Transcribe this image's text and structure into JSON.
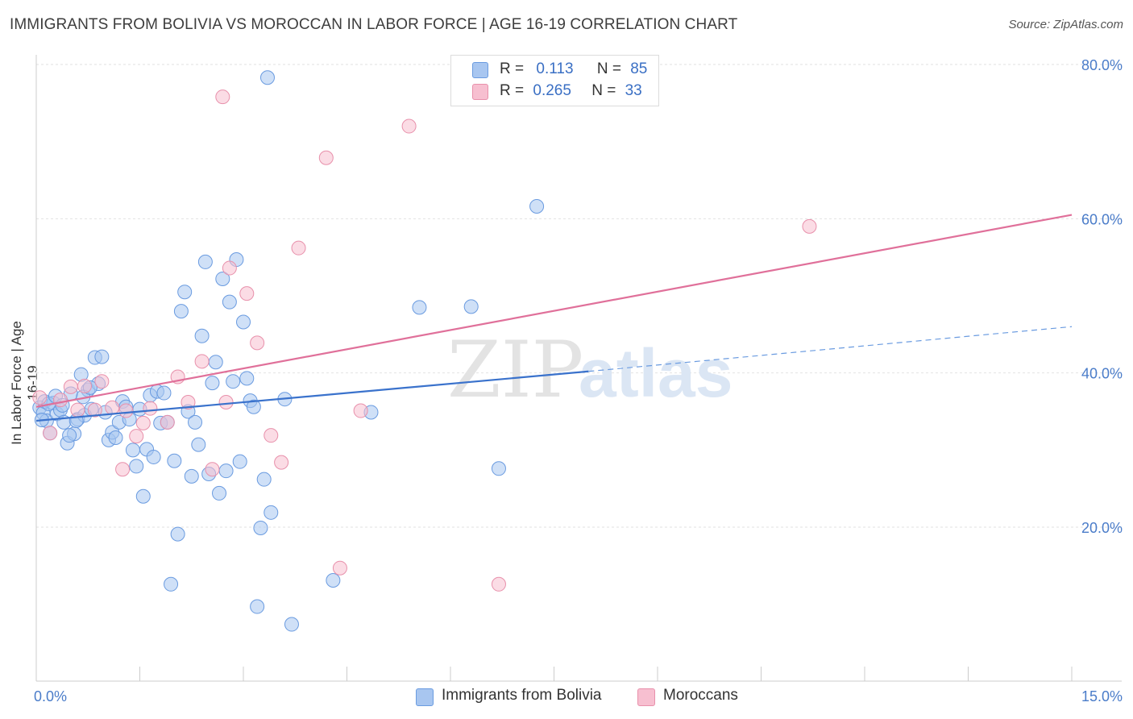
{
  "title": "IMMIGRANTS FROM BOLIVIA VS MOROCCAN IN LABOR FORCE | AGE 16-19 CORRELATION CHART",
  "source": "Source: ZipAtlas.com",
  "watermark": {
    "zip": "ZIP",
    "atlas": "atlas"
  },
  "legend": {
    "r_label": "R =",
    "n_label": "N =",
    "rows": [
      {
        "r": "0.113",
        "n": "85",
        "color": "#a8c6f0",
        "border": "#6a9be0"
      },
      {
        "r": "0.265",
        "n": "33",
        "color": "#f7bfd0",
        "border": "#e890ab"
      }
    ]
  },
  "chart_data": {
    "type": "scatter",
    "title": "IMMIGRANTS FROM BOLIVIA VS MOROCCAN IN LABOR FORCE | AGE 16-19 CORRELATION CHART",
    "xlabel": "",
    "ylabel": "In Labor Force | Age 16-19",
    "xlim": [
      0,
      15
    ],
    "ylim": [
      0,
      82
    ],
    "x_tick_labels": [
      "0.0%",
      "15.0%"
    ],
    "y_ticks": [
      20,
      40,
      60,
      80
    ],
    "y_tick_labels": [
      "20.0%",
      "40.0%",
      "60.0%",
      "80.0%"
    ],
    "grid": true,
    "legend_position": "bottom",
    "series": [
      {
        "name": "Immigrants from Bolivia",
        "color": "#6a9be0",
        "fill": "#a8c6f0",
        "trend": {
          "x": [
            0,
            8
          ],
          "y": [
            33.8,
            40.2
          ],
          "dashed_to": [
            15,
            46
          ]
        },
        "points": [
          [
            0.05,
            35.5
          ],
          [
            0.1,
            34.8
          ],
          [
            0.12,
            36.3
          ],
          [
            0.15,
            33.8
          ],
          [
            0.2,
            32.2
          ],
          [
            0.25,
            36.1
          ],
          [
            0.3,
            34.7
          ],
          [
            0.35,
            35.2
          ],
          [
            0.4,
            33.6
          ],
          [
            0.45,
            30.9
          ],
          [
            0.5,
            37.3
          ],
          [
            0.55,
            32.1
          ],
          [
            0.6,
            34.0
          ],
          [
            0.65,
            39.8
          ],
          [
            0.7,
            34.5
          ],
          [
            0.75,
            37.8
          ],
          [
            0.8,
            35.3
          ],
          [
            0.85,
            42.0
          ],
          [
            0.9,
            38.6
          ],
          [
            0.95,
            42.1
          ],
          [
            1.0,
            34.9
          ],
          [
            1.05,
            31.3
          ],
          [
            1.1,
            32.3
          ],
          [
            1.15,
            31.6
          ],
          [
            1.2,
            33.6
          ],
          [
            1.25,
            36.3
          ],
          [
            1.3,
            35.6
          ],
          [
            1.35,
            34.0
          ],
          [
            1.4,
            30.0
          ],
          [
            1.45,
            27.9
          ],
          [
            1.5,
            35.3
          ],
          [
            1.55,
            24.0
          ],
          [
            1.6,
            30.1
          ],
          [
            1.65,
            37.1
          ],
          [
            1.7,
            29.1
          ],
          [
            1.75,
            37.6
          ],
          [
            1.8,
            33.5
          ],
          [
            1.85,
            37.4
          ],
          [
            1.9,
            33.6
          ],
          [
            1.95,
            12.6
          ],
          [
            2.0,
            28.6
          ],
          [
            2.05,
            19.1
          ],
          [
            2.1,
            48.0
          ],
          [
            2.15,
            50.5
          ],
          [
            2.2,
            35.0
          ],
          [
            2.25,
            26.6
          ],
          [
            2.3,
            33.6
          ],
          [
            2.35,
            30.7
          ],
          [
            2.4,
            44.8
          ],
          [
            2.45,
            54.4
          ],
          [
            2.5,
            26.9
          ],
          [
            2.55,
            38.7
          ],
          [
            2.6,
            41.4
          ],
          [
            2.65,
            24.4
          ],
          [
            2.7,
            52.2
          ],
          [
            2.75,
            27.3
          ],
          [
            2.8,
            49.2
          ],
          [
            2.85,
            38.9
          ],
          [
            2.9,
            54.7
          ],
          [
            2.95,
            28.5
          ],
          [
            3.0,
            46.6
          ],
          [
            3.05,
            39.3
          ],
          [
            3.1,
            36.4
          ],
          [
            3.15,
            35.6
          ],
          [
            3.2,
            9.7
          ],
          [
            3.25,
            19.9
          ],
          [
            3.3,
            26.2
          ],
          [
            3.35,
            78.3
          ],
          [
            3.4,
            21.9
          ],
          [
            3.6,
            36.6
          ],
          [
            3.7,
            7.4
          ],
          [
            4.3,
            13.1
          ],
          [
            4.85,
            34.9
          ],
          [
            5.55,
            48.5
          ],
          [
            6.3,
            48.6
          ],
          [
            6.7,
            27.6
          ],
          [
            7.25,
            61.6
          ],
          [
            0.08,
            33.9
          ],
          [
            0.18,
            36.0
          ],
          [
            0.28,
            37.0
          ],
          [
            0.38,
            35.8
          ],
          [
            0.48,
            31.9
          ],
          [
            0.58,
            33.8
          ],
          [
            0.68,
            36.9
          ],
          [
            0.78,
            38.1
          ]
        ]
      },
      {
        "name": "Moroccans",
        "color": "#e890ab",
        "fill": "#f7bfd0",
        "trend": {
          "x": [
            0,
            15
          ],
          "y": [
            35.6,
            60.5
          ]
        },
        "points": [
          [
            0.05,
            36.8
          ],
          [
            0.2,
            32.2
          ],
          [
            0.35,
            36.5
          ],
          [
            0.5,
            38.2
          ],
          [
            0.6,
            35.2
          ],
          [
            0.7,
            38.3
          ],
          [
            0.85,
            35.2
          ],
          [
            0.95,
            38.9
          ],
          [
            1.1,
            35.5
          ],
          [
            1.25,
            27.5
          ],
          [
            1.3,
            35.1
          ],
          [
            1.45,
            31.8
          ],
          [
            1.55,
            33.5
          ],
          [
            1.65,
            35.4
          ],
          [
            1.9,
            33.6
          ],
          [
            2.05,
            39.5
          ],
          [
            2.2,
            36.2
          ],
          [
            2.4,
            41.5
          ],
          [
            2.55,
            27.5
          ],
          [
            2.75,
            36.2
          ],
          [
            2.8,
            53.6
          ],
          [
            3.05,
            50.3
          ],
          [
            3.2,
            43.9
          ],
          [
            3.4,
            31.9
          ],
          [
            3.55,
            28.4
          ],
          [
            3.8,
            56.2
          ],
          [
            4.2,
            67.9
          ],
          [
            4.4,
            14.7
          ],
          [
            4.7,
            35.1
          ],
          [
            5.4,
            72.0
          ],
          [
            6.7,
            12.6
          ],
          [
            11.2,
            59.0
          ],
          [
            2.7,
            75.8
          ]
        ]
      }
    ]
  }
}
